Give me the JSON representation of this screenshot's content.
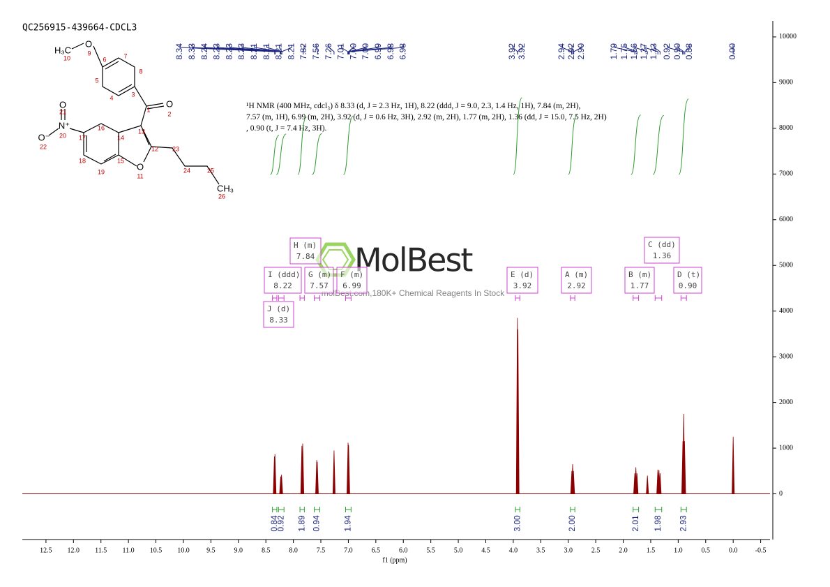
{
  "chart_data": {
    "type": "nmr",
    "title": "QC256915-439664-CDCL3",
    "x_label": "f1 (ppm)",
    "xlim": [
      12.93,
      -0.67
    ],
    "ylim": [
      -1000,
      10350
    ],
    "xticks": [
      {
        "value": 12.5,
        "label": "12.5"
      },
      {
        "value": 12,
        "label": "12.0"
      },
      {
        "value": 11.5,
        "label": "11.5"
      },
      {
        "value": 11,
        "label": "11.0"
      },
      {
        "value": 10.5,
        "label": "10.5"
      },
      {
        "value": 10,
        "label": "10.0"
      },
      {
        "value": 9.5,
        "label": "9.5"
      },
      {
        "value": 9,
        "label": "9.0"
      },
      {
        "value": 8.5,
        "label": "8.5"
      },
      {
        "value": 8,
        "label": "8.0"
      },
      {
        "value": 7.5,
        "label": "7.5"
      },
      {
        "value": 7,
        "label": "7.0"
      },
      {
        "value": 6.5,
        "label": "6.5"
      },
      {
        "value": 6,
        "label": "6.0"
      },
      {
        "value": 5.5,
        "label": "5.5"
      },
      {
        "value": 5,
        "label": "5.0"
      },
      {
        "value": 4.5,
        "label": "4.5"
      },
      {
        "value": 4,
        "label": "4.0"
      },
      {
        "value": 3.5,
        "label": "3.5"
      },
      {
        "value": 3,
        "label": "3.0"
      },
      {
        "value": 2.5,
        "label": "2.5"
      },
      {
        "value": 2,
        "label": "2.0"
      },
      {
        "value": 1.5,
        "label": "1.5"
      },
      {
        "value": 1,
        "label": "1.0"
      },
      {
        "value": 0.5,
        "label": "0.5"
      },
      {
        "value": 0,
        "label": "0.0"
      },
      {
        "value": -0.5,
        "label": "-0.5"
      }
    ],
    "yticks": [
      0,
      1000,
      2000,
      3000,
      4000,
      5000,
      6000,
      7000,
      8000,
      9000,
      10000
    ],
    "color": "#8b0000",
    "peaks": {
      "x": [
        8.345,
        8.335,
        8.23,
        8.215,
        7.845,
        7.83,
        7.575,
        7.565,
        7.26,
        7.005,
        6.995,
        3.925,
        3.915,
        2.935,
        2.92,
        2.905,
        1.79,
        1.77,
        1.75,
        1.56,
        1.37,
        1.35,
        1.33,
        0.915,
        0.9,
        0.885,
        0
      ],
      "values": [
        820,
        870,
        380,
        420,
        1050,
        1100,
        740,
        700,
        950,
        1120,
        1070,
        3850,
        3600,
        500,
        650,
        500,
        450,
        580,
        450,
        400,
        530,
        520,
        450,
        1150,
        1750,
        1150,
        1250
      ]
    },
    "peak_labels": [
      "8.34",
      "8.33",
      "8.24",
      "8.23",
      "8.23",
      "8.23",
      "8.21",
      "8.21",
      "8.21",
      "8.21",
      "7.82",
      "7.56",
      "7.26",
      "7.01",
      "7.00",
      "7.00",
      "6.99",
      "6.98",
      "6.98",
      "3.92",
      "3.92",
      "2.94",
      "2.92",
      "2.90",
      "1.79",
      "1.75",
      "1.56",
      "1.37",
      "1.33",
      "0.92",
      "0.90",
      "0.88",
      "0.00"
    ],
    "integrals": {
      "ranges": [
        [
          8.38,
          8.3
        ],
        [
          8.27,
          8.17
        ],
        [
          7.88,
          7.8
        ],
        [
          7.62,
          7.52
        ],
        [
          7.05,
          6.95
        ],
        [
          3.96,
          3.88
        ],
        [
          2.96,
          2.88
        ],
        [
          1.82,
          1.72
        ],
        [
          1.42,
          1.3
        ],
        [
          0.95,
          0.85
        ]
      ],
      "values": [
        0.84,
        0.92,
        1.89,
        0.94,
        1.94,
        3,
        2,
        2.01,
        1.98,
        2.93
      ],
      "value_labels": [
        "0.84",
        "0.92",
        "1.89",
        "0.94",
        "1.94",
        "3.00",
        "2.00",
        "2.01",
        "1.98",
        "2.93"
      ]
    },
    "multiplets": [
      {
        "name": "H (m)",
        "shift": "7.84"
      },
      {
        "name": "I (ddd)",
        "shift": "8.22"
      },
      {
        "name": "G (m)",
        "shift": "7.57"
      },
      {
        "name": "F (m)",
        "shift": "6.99"
      },
      {
        "name": "J (d)",
        "shift": "8.33"
      },
      {
        "name": "E (d)",
        "shift": "3.92"
      },
      {
        "name": "A (m)",
        "shift": "2.92"
      },
      {
        "name": "C (dd)",
        "shift": "1.36"
      },
      {
        "name": "B (m)",
        "shift": "1.77"
      },
      {
        "name": "D (t)",
        "shift": "0.90"
      }
    ],
    "annotation": "¹H NMR (400 MHz, cdcl₃) δ 8.33 (d, J = 2.3 Hz, 1H), 8.22 (ddd, J = 9.0, 2.3, 1.4 Hz, 1H), 7.84 (m, 2H), 7.57 (m, 1H), 6.99 (m, 2H), 3.92 (d, J = 0.6 Hz, 3H), 2.92 (m, 2H), 1.77 (m, 2H), 1.36 (dd, J = 15.0, 7.5 Hz, 2H), 0.90 (t, J = 7.4 Hz, 3H).",
    "watermark": "MolBest",
    "watermark_subtitle": "molBest.com,180K+ Chemical Reagents In Stock",
    "structure": {
      "atoms": [
        "H₃C",
        "O",
        "O",
        "O",
        "N⁺",
        "O⁻",
        "O",
        "CH₃"
      ],
      "numbers": [
        "10",
        "9",
        "6",
        "7",
        "5",
        "8",
        "4",
        "3",
        "1",
        "2",
        "21",
        "20",
        "22",
        "17",
        "16",
        "14",
        "13",
        "12",
        "23",
        "18",
        "19",
        "15",
        "11",
        "24",
        "25",
        "26"
      ]
    }
  }
}
